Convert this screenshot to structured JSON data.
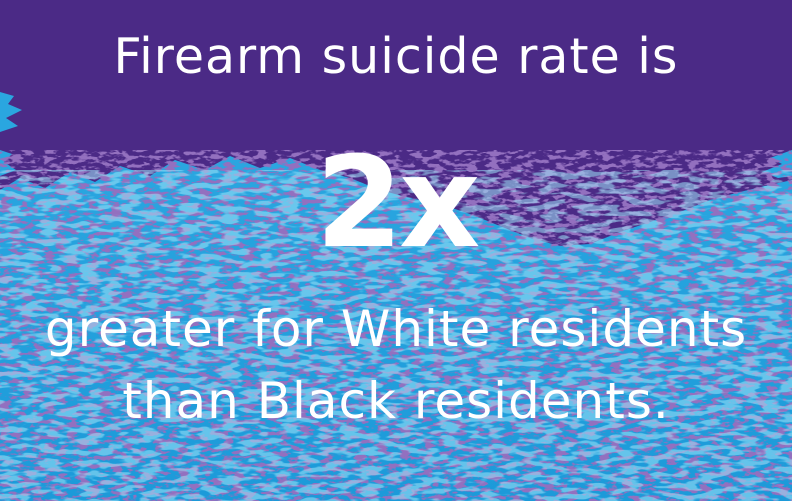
{
  "headline": "Firearm suicide rate is",
  "big_number": "2x",
  "subtext_line1": "greater for White residents",
  "subtext_line2": "than Black residents.",
  "colors": {
    "top_purple": "#4b2a86",
    "bottom_blue": "#1f9fdc",
    "light_blue": "#3cb8ec",
    "text": "#ffffff"
  }
}
